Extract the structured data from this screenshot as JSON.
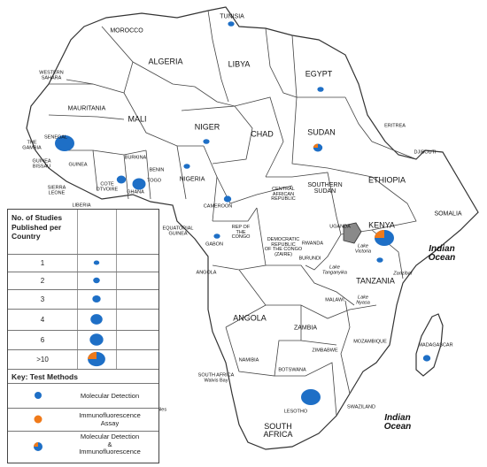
{
  "map": {
    "countries": [
      {
        "key": "tunisia",
        "label": "TUNISIA"
      },
      {
        "key": "morocco",
        "label": "MOROCCO"
      },
      {
        "key": "algeria",
        "label": "ALGERIA"
      },
      {
        "key": "libya",
        "label": "LIBYA"
      },
      {
        "key": "egypt",
        "label": "EGYPT"
      },
      {
        "key": "western_sahara",
        "label": "WESTERN\nSAHARA"
      },
      {
        "key": "mauritania",
        "label": "MAURITANIA"
      },
      {
        "key": "mali",
        "label": "MALI"
      },
      {
        "key": "niger",
        "label": "NIGER"
      },
      {
        "key": "chad",
        "label": "CHAD"
      },
      {
        "key": "sudan",
        "label": "SUDAN"
      },
      {
        "key": "eritrea",
        "label": "ERITREA"
      },
      {
        "key": "djibouti",
        "label": "DJIBOUTI"
      },
      {
        "key": "senegal",
        "label": "SENEGAL"
      },
      {
        "key": "the_gambia",
        "label": "THE\nGAMBIA"
      },
      {
        "key": "guinea_bissau",
        "label": "GUINEA\nBISSAU"
      },
      {
        "key": "guinea",
        "label": "GUINEA"
      },
      {
        "key": "burkina",
        "label": "BURKINA"
      },
      {
        "key": "benin",
        "label": "BENIN"
      },
      {
        "key": "nigeria",
        "label": "NIGERIA"
      },
      {
        "key": "ethiopia",
        "label": "ETHIOPIA"
      },
      {
        "key": "southern_sudan",
        "label": "SOUTHERN\nSUDAN"
      },
      {
        "key": "car",
        "label": "CENTRAL\nAFRICAN\nREPUBLIC"
      },
      {
        "key": "sierra_leone",
        "label": "SIERRA\nLEONE"
      },
      {
        "key": "cote_divoire",
        "label": "COTE\nDTVOIRE"
      },
      {
        "key": "ghana",
        "label": "GHANA"
      },
      {
        "key": "togo",
        "label": "TOGO"
      },
      {
        "key": "liberia",
        "label": "LIBERIA"
      },
      {
        "key": "cameroon",
        "label": "CAMEROON"
      },
      {
        "key": "somalia",
        "label": "SOMALIA"
      },
      {
        "key": "kenya",
        "label": "KENYA"
      },
      {
        "key": "uganda",
        "label": "UGANDA"
      },
      {
        "key": "equatorial_guinea",
        "label": "EQUATORIAL\nGUINEA"
      },
      {
        "key": "rep_congo",
        "label": "REP OF\nTHE\nCONGO"
      },
      {
        "key": "drc",
        "label": "DEMOCRATIC\nREPUBLIC\nOF THE CONGO\n(ZAIRE)"
      },
      {
        "key": "rwanda",
        "label": "RWANDA"
      },
      {
        "key": "burundi",
        "label": "BURUNDI"
      },
      {
        "key": "gabon",
        "label": "GABON"
      },
      {
        "key": "tanzania",
        "label": "TANZANIA"
      },
      {
        "key": "angola_small",
        "label": "ANGOLA"
      },
      {
        "key": "angola",
        "label": "ANGOLA"
      },
      {
        "key": "malawi",
        "label": "MALAWI"
      },
      {
        "key": "zambia",
        "label": "ZAMBIA"
      },
      {
        "key": "mozambique",
        "label": "MOZAMBIQUE"
      },
      {
        "key": "zimbabwe",
        "label": "ZIMBABWE"
      },
      {
        "key": "madagascar",
        "label": "MADAGASCAR"
      },
      {
        "key": "namibia",
        "label": "NAMIBIA"
      },
      {
        "key": "botswana",
        "label": "BOTSWANA"
      },
      {
        "key": "south_africa_walvis",
        "label": "SOUTH AFRICA\nWalvis Bay"
      },
      {
        "key": "swaziland",
        "label": "SWAZILAND"
      },
      {
        "key": "lesotho",
        "label": "LESOTHO"
      },
      {
        "key": "south_africa",
        "label": "SOUTH\nAFRICA"
      }
    ],
    "water": [
      {
        "key": "indian_ocean_1",
        "label": "Indian\nOcean"
      },
      {
        "key": "indian_ocean_2",
        "label": "Indian\nOcean"
      },
      {
        "key": "lake_victoria",
        "label": "Lake\nVictoria"
      },
      {
        "key": "lake_tanganyika",
        "label": "Lake\nTanganyika"
      },
      {
        "key": "lake_nyasa",
        "label": "Lake\nNyasa"
      },
      {
        "key": "zanzibar",
        "label": "Zanzibar"
      },
      {
        "key": "iles",
        "label": "iles"
      }
    ],
    "study_markers": [
      {
        "country": "tunisia",
        "studies": "1",
        "method": "molecular"
      },
      {
        "country": "egypt",
        "studies": "1",
        "method": "molecular"
      },
      {
        "country": "senegal",
        "studies": ">10",
        "method": "molecular"
      },
      {
        "country": "niger",
        "studies": "1",
        "method": "molecular"
      },
      {
        "country": "sudan",
        "studies": "3",
        "method": "both"
      },
      {
        "country": "cote_divoire",
        "studies": "3",
        "method": "molecular"
      },
      {
        "country": "ghana",
        "studies": "4",
        "method": "molecular"
      },
      {
        "country": "nigeria",
        "studies": "1",
        "method": "molecular"
      },
      {
        "country": "cameroon",
        "studies": "2",
        "method": "molecular"
      },
      {
        "country": "gabon",
        "studies": "1",
        "method": "molecular"
      },
      {
        "country": "kenya",
        "studies": ">10",
        "method": "both"
      },
      {
        "country": "tanzania",
        "studies": "1",
        "method": "molecular"
      },
      {
        "country": "madagascar",
        "studies": "2",
        "method": "molecular"
      },
      {
        "country": "south_africa",
        "studies": ">10",
        "method": "molecular"
      }
    ],
    "colors": {
      "molecular": "#1e6fc6",
      "immunofluorescence": "#f07a1a",
      "highlight_uganda": "#8a8a8a",
      "land": "#ffffff",
      "border": "#333333"
    }
  },
  "legend": {
    "header": "No. of Studies\nPublished per\nCountry",
    "rows": [
      {
        "label": "1"
      },
      {
        "label": "2"
      },
      {
        "label": "3"
      },
      {
        "label": "4"
      },
      {
        "label": "6"
      },
      {
        "label": ">10"
      }
    ],
    "key_header": "Key: Test Methods",
    "methods": [
      {
        "label": "Molecular Detection",
        "type": "molecular"
      },
      {
        "label": "Immunofluorescence\nAssay",
        "type": "immunofluorescence"
      },
      {
        "label": "Molecular Detection\n&\nImmunofluorescence",
        "type": "both"
      }
    ]
  }
}
